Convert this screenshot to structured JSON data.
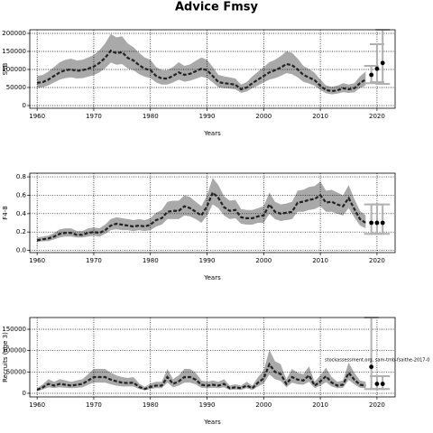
{
  "chart_data": [
    {
      "type": "line",
      "title": "Advice Fmsy",
      "ylabel": "SSB",
      "xlabel": "Years",
      "xlim": [
        1958.7,
        2023.2
      ],
      "xticks": [
        1960,
        1970,
        1980,
        1990,
        2000,
        2010,
        2020
      ],
      "ylim": [
        -7500,
        210000
      ],
      "yticks": [
        0,
        50000,
        100000,
        150000,
        200000
      ],
      "grid": true,
      "line_color": "#222222",
      "band_color": "#a9a9a9",
      "x": [
        1960,
        1961,
        1962,
        1963,
        1964,
        1965,
        1966,
        1967,
        1968,
        1969,
        1970,
        1971,
        1972,
        1973,
        1974,
        1975,
        1976,
        1977,
        1978,
        1979,
        1980,
        1981,
        1982,
        1983,
        1984,
        1985,
        1986,
        1987,
        1988,
        1989,
        1990,
        1991,
        1992,
        1993,
        1994,
        1995,
        1996,
        1997,
        1998,
        1999,
        2000,
        2001,
        2002,
        2003,
        2004,
        2005,
        2006,
        2007,
        2008,
        2009,
        2010,
        2011,
        2012,
        2013,
        2014,
        2015,
        2016,
        2017,
        2018
      ],
      "values": [
        63000,
        65000,
        72000,
        82000,
        92000,
        98000,
        100000,
        96000,
        98000,
        102000,
        108000,
        118000,
        132000,
        152000,
        145000,
        148000,
        132000,
        125000,
        112000,
        102000,
        98000,
        82000,
        75000,
        75000,
        82000,
        92000,
        85000,
        88000,
        95000,
        102000,
        98000,
        82000,
        65000,
        62000,
        60000,
        58000,
        45000,
        50000,
        62000,
        72000,
        82000,
        92000,
        98000,
        105000,
        115000,
        112000,
        100000,
        85000,
        78000,
        70000,
        55000,
        43000,
        40000,
        42000,
        48000,
        45000,
        48000,
        62000,
        72000
      ],
      "upper": [
        82000,
        85000,
        94000,
        107000,
        120000,
        127000,
        130000,
        125000,
        127000,
        133000,
        140000,
        153000,
        172000,
        198000,
        189000,
        192000,
        172000,
        162000,
        146000,
        133000,
        127000,
        107000,
        98000,
        98000,
        107000,
        120000,
        110000,
        114000,
        124000,
        133000,
        127000,
        107000,
        85000,
        81000,
        78000,
        75000,
        58000,
        65000,
        81000,
        94000,
        107000,
        120000,
        127000,
        137000,
        150000,
        146000,
        130000,
        110000,
        101000,
        91000,
        72000,
        56000,
        52000,
        55000,
        62000,
        58000,
        62000,
        81000,
        94000
      ],
      "lower": [
        49000,
        51000,
        56000,
        64000,
        72000,
        76000,
        78000,
        75000,
        76000,
        80000,
        84000,
        92000,
        103000,
        119000,
        113000,
        115000,
        103000,
        98000,
        87000,
        80000,
        76000,
        64000,
        58000,
        58000,
        64000,
        72000,
        66000,
        69000,
        74000,
        80000,
        76000,
        64000,
        51000,
        48000,
        47000,
        45000,
        35000,
        39000,
        48000,
        56000,
        64000,
        72000,
        76000,
        82000,
        90000,
        87000,
        78000,
        66000,
        61000,
        55000,
        43000,
        34000,
        31000,
        33000,
        37000,
        35000,
        37000,
        48000,
        56000
      ],
      "points": {
        "x": [
          2019,
          2020,
          2021
        ],
        "values": [
          85000,
          102000,
          118000
        ],
        "lower": [
          62000,
          65000,
          60000
        ],
        "upper": [
          110000,
          170000,
          210000
        ]
      }
    },
    {
      "type": "line",
      "ylabel": "F4-8",
      "xlabel": "Years",
      "xlim": [
        1958.7,
        2023.2
      ],
      "xticks": [
        1960,
        1970,
        1980,
        1990,
        2000,
        2010,
        2020
      ],
      "ylim": [
        -0.024,
        0.84
      ],
      "yticks": [
        {
          "value": 0,
          "label": "0.0"
        },
        0.2,
        0.4,
        0.6,
        0.8
      ],
      "grid": true,
      "line_color": "#222222",
      "band_color": "#a9a9a9",
      "x": [
        1960,
        1961,
        1962,
        1963,
        1964,
        1965,
        1966,
        1967,
        1968,
        1969,
        1970,
        1971,
        1972,
        1973,
        1974,
        1975,
        1976,
        1977,
        1978,
        1979,
        1980,
        1981,
        1982,
        1983,
        1984,
        1985,
        1986,
        1987,
        1988,
        1989,
        1990,
        1991,
        1992,
        1993,
        1994,
        1995,
        1996,
        1997,
        1998,
        1999,
        2000,
        2001,
        2002,
        2003,
        2004,
        2005,
        2006,
        2007,
        2008,
        2009,
        2010,
        2011,
        2012,
        2013,
        2014,
        2015,
        2016,
        2017,
        2018
      ],
      "values": [
        0.11,
        0.12,
        0.13,
        0.15,
        0.18,
        0.19,
        0.19,
        0.17,
        0.17,
        0.19,
        0.2,
        0.19,
        0.22,
        0.27,
        0.29,
        0.28,
        0.27,
        0.26,
        0.27,
        0.26,
        0.28,
        0.33,
        0.35,
        0.42,
        0.43,
        0.43,
        0.48,
        0.46,
        0.42,
        0.38,
        0.48,
        0.63,
        0.57,
        0.47,
        0.43,
        0.44,
        0.36,
        0.35,
        0.35,
        0.37,
        0.38,
        0.5,
        0.42,
        0.4,
        0.41,
        0.42,
        0.52,
        0.53,
        0.55,
        0.56,
        0.6,
        0.52,
        0.53,
        0.5,
        0.48,
        0.57,
        0.45,
        0.34,
        0.3
      ],
      "upper": [
        0.14,
        0.15,
        0.16,
        0.19,
        0.23,
        0.24,
        0.24,
        0.21,
        0.21,
        0.24,
        0.25,
        0.24,
        0.28,
        0.34,
        0.36,
        0.35,
        0.34,
        0.33,
        0.34,
        0.33,
        0.35,
        0.41,
        0.44,
        0.53,
        0.54,
        0.54,
        0.6,
        0.58,
        0.53,
        0.48,
        0.6,
        0.79,
        0.71,
        0.59,
        0.54,
        0.55,
        0.45,
        0.44,
        0.44,
        0.46,
        0.48,
        0.63,
        0.53,
        0.5,
        0.51,
        0.53,
        0.65,
        0.66,
        0.69,
        0.7,
        0.75,
        0.65,
        0.66,
        0.63,
        0.6,
        0.71,
        0.56,
        0.43,
        0.38
      ],
      "lower": [
        0.09,
        0.1,
        0.1,
        0.12,
        0.14,
        0.15,
        0.15,
        0.14,
        0.14,
        0.15,
        0.16,
        0.15,
        0.18,
        0.22,
        0.23,
        0.22,
        0.22,
        0.21,
        0.22,
        0.21,
        0.22,
        0.26,
        0.28,
        0.34,
        0.34,
        0.34,
        0.38,
        0.37,
        0.34,
        0.3,
        0.38,
        0.5,
        0.46,
        0.38,
        0.34,
        0.35,
        0.29,
        0.28,
        0.28,
        0.3,
        0.3,
        0.4,
        0.34,
        0.32,
        0.33,
        0.34,
        0.42,
        0.42,
        0.44,
        0.45,
        0.48,
        0.42,
        0.42,
        0.4,
        0.38,
        0.46,
        0.36,
        0.27,
        0.24
      ],
      "points": {
        "x": [
          2019,
          2020,
          2021
        ],
        "values": [
          0.3,
          0.3,
          0.3
        ],
        "lower": [
          0.18,
          0.18,
          0.18
        ],
        "upper": [
          0.5,
          0.5,
          0.5
        ]
      }
    },
    {
      "type": "line",
      "ylabel": "Recruits (age 3)",
      "xlabel": "Years",
      "annotation": "stockassessment.org, sam-tmb-fsaithe-2017-0",
      "xlim": [
        1958.7,
        2023.2
      ],
      "xticks": [
        1960,
        1970,
        1980,
        1990,
        2000,
        2010,
        2020
      ],
      "ylim": [
        -8500,
        177500
      ],
      "yticks": [
        0,
        50000,
        100000,
        150000
      ],
      "grid": true,
      "line_color": "#222222",
      "band_color": "#a9a9a9",
      "x": [
        1960,
        1961,
        1962,
        1963,
        1964,
        1965,
        1966,
        1967,
        1968,
        1969,
        1970,
        1971,
        1972,
        1973,
        1974,
        1975,
        1976,
        1977,
        1978,
        1979,
        1980,
        1981,
        1982,
        1983,
        1984,
        1985,
        1986,
        1987,
        1988,
        1989,
        1990,
        1991,
        1992,
        1993,
        1994,
        1995,
        1996,
        1997,
        1998,
        1999,
        2000,
        2001,
        2002,
        2003,
        2004,
        2005,
        2006,
        2007,
        2008,
        2009,
        2010,
        2011,
        2012,
        2013,
        2014,
        2015,
        2016,
        2017,
        2018
      ],
      "values": [
        8000,
        14000,
        22000,
        18000,
        22000,
        20000,
        18000,
        20000,
        22000,
        30000,
        38000,
        38000,
        38000,
        32000,
        28000,
        25000,
        24000,
        25000,
        15000,
        10000,
        15000,
        18000,
        18000,
        38000,
        22000,
        28000,
        38000,
        38000,
        32000,
        20000,
        18000,
        20000,
        18000,
        22000,
        12000,
        14000,
        12000,
        18000,
        12000,
        25000,
        35000,
        68000,
        50000,
        45000,
        22000,
        38000,
        32000,
        30000,
        42000,
        18000,
        28000,
        40000,
        25000,
        18000,
        20000,
        48000,
        32000,
        20000,
        18000
      ],
      "upper": [
        12000,
        21000,
        33000,
        27000,
        33000,
        30000,
        27000,
        30000,
        33000,
        45000,
        57000,
        57000,
        57000,
        48000,
        42000,
        38000,
        36000,
        38000,
        23000,
        15000,
        23000,
        27000,
        27000,
        57000,
        33000,
        42000,
        57000,
        57000,
        48000,
        30000,
        27000,
        30000,
        27000,
        33000,
        18000,
        21000,
        18000,
        27000,
        18000,
        38000,
        53000,
        102000,
        75000,
        68000,
        33000,
        57000,
        48000,
        45000,
        63000,
        27000,
        42000,
        60000,
        38000,
        27000,
        30000,
        72000,
        48000,
        30000,
        27000
      ],
      "lower": [
        5000,
        9000,
        14000,
        12000,
        14000,
        13000,
        12000,
        13000,
        14000,
        20000,
        25000,
        25000,
        25000,
        21000,
        18000,
        16000,
        16000,
        16000,
        10000,
        7000,
        10000,
        12000,
        12000,
        25000,
        14000,
        18000,
        25000,
        25000,
        21000,
        13000,
        12000,
        13000,
        12000,
        14000,
        8000,
        9000,
        8000,
        12000,
        8000,
        16000,
        23000,
        44000,
        33000,
        29000,
        14000,
        25000,
        21000,
        20000,
        27000,
        12000,
        18000,
        26000,
        16000,
        12000,
        13000,
        31000,
        21000,
        13000,
        12000
      ],
      "points": {
        "x": [
          2019,
          2020,
          2021
        ],
        "values": [
          62000,
          22000,
          22000
        ],
        "lower": [
          10000,
          10000,
          10000
        ],
        "upper": [
          177500,
          40000,
          40000
        ]
      }
    }
  ]
}
